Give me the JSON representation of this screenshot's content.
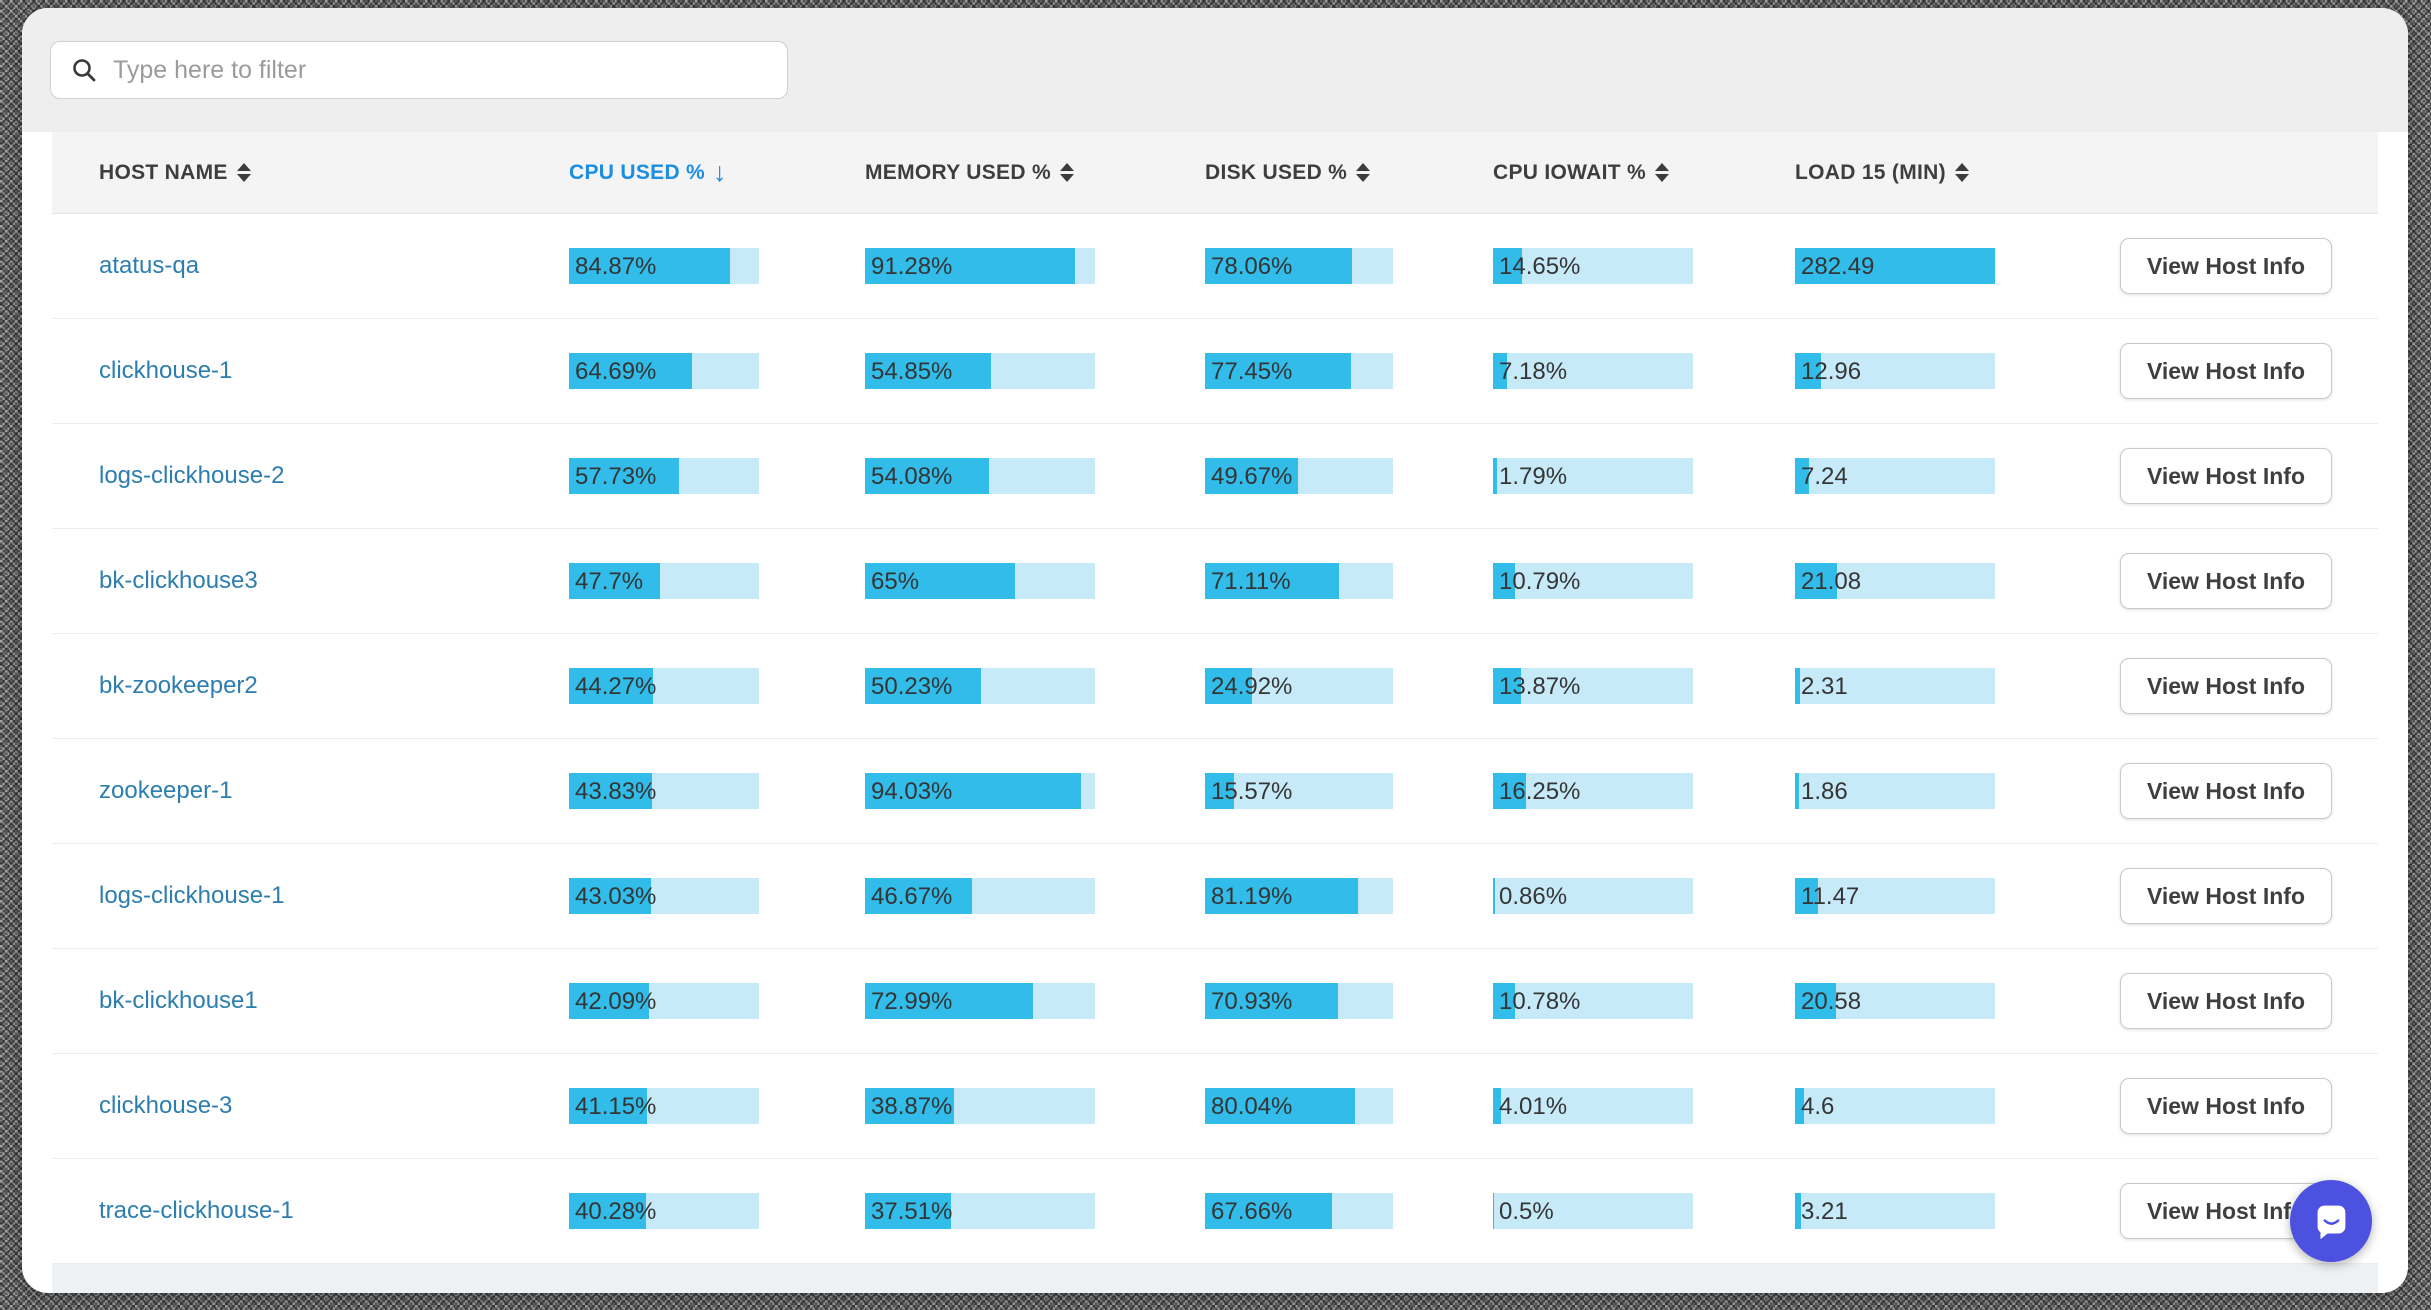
{
  "toolbar": {
    "filter_placeholder": "Type here to filter"
  },
  "icons": {
    "sort_desc": "↓"
  },
  "table": {
    "columns": [
      {
        "label": "HOST NAME",
        "sortable": true,
        "sorted": null
      },
      {
        "label": "CPU USED %",
        "sortable": true,
        "sorted": "desc"
      },
      {
        "label": "MEMORY USED %",
        "sortable": true,
        "sorted": null
      },
      {
        "label": "DISK USED %",
        "sortable": true,
        "sorted": null
      },
      {
        "label": "CPU IOWAIT %",
        "sortable": true,
        "sorted": null
      },
      {
        "label": "LOAD 15 (MIN)",
        "sortable": true,
        "sorted": null
      }
    ],
    "action_label": "View Host Info",
    "rows": [
      {
        "host": "atatus-qa",
        "cpu": {
          "text": "84.87%",
          "pct": 84.87
        },
        "mem": {
          "text": "91.28%",
          "pct": 91.28
        },
        "disk": {
          "text": "78.06%",
          "pct": 78.06
        },
        "iowait": {
          "text": "14.65%",
          "pct": 14.65
        },
        "load15": {
          "text": "282.49",
          "pct": 282.49
        }
      },
      {
        "host": "clickhouse-1",
        "cpu": {
          "text": "64.69%",
          "pct": 64.69
        },
        "mem": {
          "text": "54.85%",
          "pct": 54.85
        },
        "disk": {
          "text": "77.45%",
          "pct": 77.45
        },
        "iowait": {
          "text": "7.18%",
          "pct": 7.18
        },
        "load15": {
          "text": "12.96",
          "pct": 12.96
        }
      },
      {
        "host": "logs-clickhouse-2",
        "cpu": {
          "text": "57.73%",
          "pct": 57.73
        },
        "mem": {
          "text": "54.08%",
          "pct": 54.08
        },
        "disk": {
          "text": "49.67%",
          "pct": 49.67
        },
        "iowait": {
          "text": "1.79%",
          "pct": 1.79
        },
        "load15": {
          "text": "7.24",
          "pct": 7.24
        }
      },
      {
        "host": "bk-clickhouse3",
        "cpu": {
          "text": "47.7%",
          "pct": 47.7
        },
        "mem": {
          "text": "65%",
          "pct": 65
        },
        "disk": {
          "text": "71.11%",
          "pct": 71.11
        },
        "iowait": {
          "text": "10.79%",
          "pct": 10.79
        },
        "load15": {
          "text": "21.08",
          "pct": 21.08
        }
      },
      {
        "host": "bk-zookeeper2",
        "cpu": {
          "text": "44.27%",
          "pct": 44.27
        },
        "mem": {
          "text": "50.23%",
          "pct": 50.23
        },
        "disk": {
          "text": "24.92%",
          "pct": 24.92
        },
        "iowait": {
          "text": "13.87%",
          "pct": 13.87
        },
        "load15": {
          "text": "2.31",
          "pct": 2.31
        }
      },
      {
        "host": "zookeeper-1",
        "cpu": {
          "text": "43.83%",
          "pct": 43.83
        },
        "mem": {
          "text": "94.03%",
          "pct": 94.03
        },
        "disk": {
          "text": "15.57%",
          "pct": 15.57
        },
        "iowait": {
          "text": "16.25%",
          "pct": 16.25
        },
        "load15": {
          "text": "1.86",
          "pct": 1.86
        }
      },
      {
        "host": "logs-clickhouse-1",
        "cpu": {
          "text": "43.03%",
          "pct": 43.03
        },
        "mem": {
          "text": "46.67%",
          "pct": 46.67
        },
        "disk": {
          "text": "81.19%",
          "pct": 81.19
        },
        "iowait": {
          "text": "0.86%",
          "pct": 0.86
        },
        "load15": {
          "text": "11.47",
          "pct": 11.47
        }
      },
      {
        "host": "bk-clickhouse1",
        "cpu": {
          "text": "42.09%",
          "pct": 42.09
        },
        "mem": {
          "text": "72.99%",
          "pct": 72.99
        },
        "disk": {
          "text": "70.93%",
          "pct": 70.93
        },
        "iowait": {
          "text": "10.78%",
          "pct": 10.78
        },
        "load15": {
          "text": "20.58",
          "pct": 20.58
        }
      },
      {
        "host": "clickhouse-3",
        "cpu": {
          "text": "41.15%",
          "pct": 41.15
        },
        "mem": {
          "text": "38.87%",
          "pct": 38.87
        },
        "disk": {
          "text": "80.04%",
          "pct": 80.04
        },
        "iowait": {
          "text": "4.01%",
          "pct": 4.01
        },
        "load15": {
          "text": "4.6",
          "pct": 4.6
        }
      },
      {
        "host": "trace-clickhouse-1",
        "cpu": {
          "text": "40.28%",
          "pct": 40.28
        },
        "mem": {
          "text": "37.51%",
          "pct": 37.51
        },
        "disk": {
          "text": "67.66%",
          "pct": 67.66
        },
        "iowait": {
          "text": "0.5%",
          "pct": 0.5
        },
        "load15": {
          "text": "3.21",
          "pct": 3.21
        }
      }
    ]
  },
  "colors": {
    "bar_fill": "#31bce9",
    "bar_track": "#c7eaf9",
    "link": "#2d7eb0",
    "sort_active": "#1b8ee3",
    "chat_bg": "#4c51e0"
  }
}
